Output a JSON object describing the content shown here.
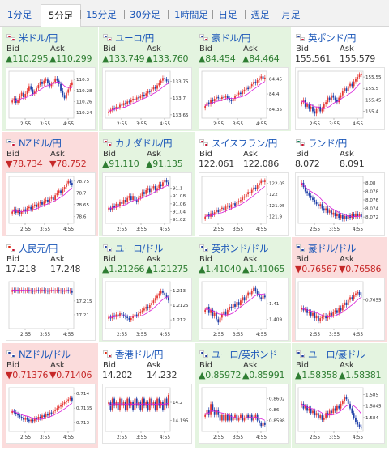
{
  "timeframes": {
    "active": "5分足",
    "items": [
      "1分足",
      "5分足",
      "15分足",
      "30分足",
      "1時間足",
      "日足",
      "週足",
      "月足"
    ]
  },
  "labels": {
    "bid": "Bid",
    "ask": "Ask"
  },
  "colors": {
    "up": "#2e7d32",
    "down": "#c62828",
    "up_bg": "#e4f4e0",
    "down_bg": "#fbdcdc",
    "link": "#1a56b8",
    "candle_up": "#e53935",
    "candle_down": "#1e3fa8",
    "ma": "#d81bd8"
  },
  "time_labels": [
    "2:55",
    "3:55",
    "4:55"
  ],
  "cells": [
    {
      "pair": "米ドル/円",
      "flag_a": "#c8102e",
      "flag_b": "#c8102e",
      "trend": "up",
      "bid": "110.295",
      "ask": "110.299",
      "chart_data": {
        "type": "candlestick",
        "y_ticks": [
          "110.3",
          "110.28",
          "110.26",
          "110.24"
        ],
        "ylim": [
          110.23,
          110.315
        ],
        "x_ticks": [
          "2:55",
          "3:55",
          "4:55"
        ],
        "closes": [
          110.262,
          110.266,
          110.258,
          110.262,
          110.27,
          110.276,
          110.268,
          110.274,
          110.28,
          110.288,
          110.282,
          110.274,
          110.278,
          110.284,
          110.29,
          110.296,
          110.292,
          110.298,
          110.3,
          110.294,
          110.288,
          110.292,
          110.296,
          110.302,
          110.298,
          110.292,
          110.28,
          110.272,
          110.266,
          110.276,
          110.282,
          110.29,
          110.295
        ]
      }
    },
    {
      "pair": "ユーロ/円",
      "flag_a": "#1f3f9f",
      "flag_b": "#c8102e",
      "trend": "up",
      "bid": "133.749",
      "ask": "133.760",
      "chart_data": {
        "type": "candlestick",
        "y_ticks": [
          "133.75",
          "133.7",
          "133.65"
        ],
        "ylim": [
          133.64,
          133.78
        ],
        "x_ticks": [
          "2:55",
          "3:55",
          "4:55"
        ],
        "closes": [
          133.66,
          133.665,
          133.67,
          133.668,
          133.674,
          133.672,
          133.68,
          133.678,
          133.685,
          133.682,
          133.69,
          133.688,
          133.694,
          133.698,
          133.696,
          133.702,
          133.7,
          133.705,
          133.71,
          133.708,
          133.714,
          133.72,
          133.718,
          133.726,
          133.732,
          133.728,
          133.738,
          133.746,
          133.752,
          133.76,
          133.756,
          133.75,
          133.749
        ]
      }
    },
    {
      "pair": "豪ドル/円",
      "flag_a": "#1f3f9f",
      "flag_b": "#c8102e",
      "trend": "up",
      "bid": "84.454",
      "ask": "84.464",
      "chart_data": {
        "type": "candlestick",
        "y_ticks": [
          "84.45",
          "84.4",
          "84.35"
        ],
        "ylim": [
          84.32,
          84.475
        ],
        "x_ticks": [
          "2:55",
          "3:55",
          "4:55"
        ],
        "closes": [
          84.36,
          84.372,
          84.366,
          84.38,
          84.376,
          84.384,
          84.39,
          84.386,
          84.384,
          84.39,
          84.388,
          84.392,
          84.386,
          84.38,
          84.376,
          84.384,
          84.392,
          84.398,
          84.404,
          84.4,
          84.408,
          84.414,
          84.42,
          84.416,
          84.426,
          84.432,
          84.44,
          84.436,
          84.446,
          84.452,
          84.458,
          84.45,
          84.454
        ]
      }
    },
    {
      "pair": "英ポンド/円",
      "flag_a": "#1f3f9f",
      "flag_b": "#c8102e",
      "trend": "flat",
      "bid": "155.561",
      "ask": "155.579",
      "chart_data": {
        "type": "candlestick",
        "y_ticks": [
          "155.55",
          "155.5",
          "155.45",
          "155.4"
        ],
        "ylim": [
          155.37,
          155.575
        ],
        "x_ticks": [
          "2:55",
          "3:55",
          "4:55"
        ],
        "closes": [
          155.44,
          155.45,
          155.42,
          155.43,
          155.41,
          155.42,
          155.4,
          155.39,
          155.41,
          155.42,
          155.4,
          155.41,
          155.43,
          155.44,
          155.46,
          155.45,
          155.47,
          155.46,
          155.45,
          155.44,
          155.46,
          155.47,
          155.49,
          155.5,
          155.49,
          155.51,
          155.52,
          155.51,
          155.53,
          155.54,
          155.55,
          155.56,
          155.561
        ]
      }
    },
    {
      "pair": "NZドル/円",
      "flag_a": "#1f3f9f",
      "flag_b": "#c8102e",
      "trend": "down",
      "bid": "78.734",
      "ask": "78.752",
      "chart_data": {
        "type": "candlestick",
        "y_ticks": [
          "78.75",
          "78.7",
          "78.65",
          "78.6"
        ],
        "ylim": [
          78.57,
          78.77
        ],
        "x_ticks": [
          "2:55",
          "3:55",
          "4:55"
        ],
        "closes": [
          78.62,
          78.63,
          78.615,
          78.625,
          78.61,
          78.62,
          78.63,
          78.62,
          78.635,
          78.64,
          78.63,
          78.645,
          78.65,
          78.64,
          78.655,
          78.66,
          78.65,
          78.665,
          78.67,
          78.66,
          78.675,
          78.68,
          78.67,
          78.69,
          78.7,
          78.71,
          78.7,
          78.715,
          78.725,
          78.74,
          78.75,
          78.742,
          78.734
        ]
      }
    },
    {
      "pair": "カナダドル/円",
      "flag_a": "#c8102e",
      "flag_b": "#c8102e",
      "trend": "up",
      "bid": "91.110",
      "ask": "91.135",
      "chart_data": {
        "type": "candlestick",
        "y_ticks": [
          "91.1",
          "91.08",
          "91.06",
          "91.04",
          "91.02"
        ],
        "ylim": [
          91.01,
          91.13
        ],
        "x_ticks": [
          "2:55",
          "3:55",
          "4:55"
        ],
        "closes": [
          91.05,
          91.045,
          91.055,
          91.05,
          91.06,
          91.055,
          91.065,
          91.06,
          91.07,
          91.065,
          91.075,
          91.08,
          91.07,
          91.08,
          91.07,
          91.065,
          91.075,
          91.08,
          91.09,
          91.085,
          91.095,
          91.1,
          91.09,
          91.1,
          91.105,
          91.095,
          91.1,
          91.11,
          91.105,
          91.115,
          91.12,
          91.115,
          91.11
        ]
      }
    },
    {
      "pair": "スイスフラン/円",
      "flag_a": "#c8102e",
      "flag_b": "#c8102e",
      "trend": "flat",
      "bid": "122.061",
      "ask": "122.086",
      "chart_data": {
        "type": "candlestick",
        "y_ticks": [
          "122.05",
          "122",
          "121.95",
          "121.9"
        ],
        "ylim": [
          121.87,
          122.08
        ],
        "x_ticks": [
          "2:55",
          "3:55",
          "4:55"
        ],
        "closes": [
          121.9,
          121.91,
          121.9,
          121.915,
          121.91,
          121.92,
          121.93,
          121.92,
          121.935,
          121.94,
          121.93,
          121.945,
          121.95,
          121.94,
          121.955,
          121.96,
          121.95,
          121.965,
          121.97,
          121.975,
          121.985,
          121.99,
          122.0,
          122.01,
          122.005,
          122.02,
          122.03,
          122.025,
          122.04,
          122.05,
          122.06,
          122.055,
          122.061
        ]
      }
    },
    {
      "pair": "ランド/円",
      "flag_a": "#007a4d",
      "flag_b": "#c8102e",
      "trend": "flat",
      "bid": "8.072",
      "ask": "8.091",
      "chart_data": {
        "type": "candlestick",
        "y_ticks": [
          "8.08",
          "8.078",
          "8.076",
          "8.074",
          "8.072"
        ],
        "ylim": [
          8.0705,
          8.0815
        ],
        "x_ticks": [
          "2:55",
          "3:55",
          "4:55"
        ],
        "closes": [
          8.08,
          8.079,
          8.078,
          8.0775,
          8.077,
          8.0765,
          8.076,
          8.0755,
          8.075,
          8.0745,
          8.075,
          8.074,
          8.0735,
          8.074,
          8.073,
          8.0735,
          8.0725,
          8.073,
          8.0722,
          8.0728,
          8.0718,
          8.0724,
          8.0715,
          8.0722,
          8.0716,
          8.0724,
          8.0718,
          8.0726,
          8.072,
          8.0728,
          8.0722,
          8.0726,
          8.072
        ]
      }
    },
    {
      "pair": "人民元/円",
      "flag_a": "#de2910",
      "flag_b": "#c8102e",
      "trend": "flat",
      "bid": "17.218",
      "ask": "17.248",
      "chart_data": {
        "type": "candlestick",
        "y_ticks": [
          "17.215",
          "17.21"
        ],
        "ylim": [
          17.205,
          17.222
        ],
        "x_ticks": [
          "2:55",
          "3:55",
          "4:55"
        ],
        "closes": [
          17.219,
          17.2188,
          17.219,
          17.2186,
          17.2188,
          17.219,
          17.2186,
          17.2188,
          17.219,
          17.2186,
          17.2188,
          17.2184,
          17.2188,
          17.219,
          17.2186,
          17.2188,
          17.219,
          17.2186,
          17.2188,
          17.2184,
          17.2188,
          17.219,
          17.2186,
          17.2188,
          17.219,
          17.2186,
          17.2188,
          17.2184,
          17.2188,
          17.219,
          17.2186,
          17.2188,
          17.218
        ]
      }
    },
    {
      "pair": "ユーロ/ドル",
      "flag_a": "#1f3f9f",
      "flag_b": "#1f3f9f",
      "trend": "up",
      "bid": "1.21266",
      "ask": "1.21275",
      "chart_data": {
        "type": "candlestick",
        "y_ticks": [
          "1.213",
          "1.2125",
          "1.212"
        ],
        "ylim": [
          1.2117,
          1.2133
        ],
        "x_ticks": [
          "2:55",
          "3:55",
          "4:55"
        ],
        "closes": [
          1.2121,
          1.21205,
          1.21215,
          1.2121,
          1.21218,
          1.21214,
          1.21222,
          1.21218,
          1.21214,
          1.2121,
          1.21206,
          1.212,
          1.21206,
          1.21212,
          1.21218,
          1.21214,
          1.21222,
          1.21228,
          1.21232,
          1.21238,
          1.21244,
          1.2124,
          1.2125,
          1.21258,
          1.21266,
          1.21274,
          1.21282,
          1.2129,
          1.21298,
          1.21292,
          1.21284,
          1.21276,
          1.21266
        ]
      }
    },
    {
      "pair": "英ポンド/ドル",
      "flag_a": "#1f3f9f",
      "flag_b": "#1f3f9f",
      "trend": "up",
      "bid": "1.41040",
      "ask": "1.41065",
      "chart_data": {
        "type": "candlestick",
        "y_ticks": [
          "1.41",
          "1.409"
        ],
        "ylim": [
          1.4084,
          1.4114
        ],
        "x_ticks": [
          "2:55",
          "3:55",
          "4:55"
        ],
        "closes": [
          1.4096,
          1.4098,
          1.4094,
          1.4096,
          1.4092,
          1.4094,
          1.409,
          1.4088,
          1.4091,
          1.4093,
          1.4095,
          1.4093,
          1.4096,
          1.4098,
          1.4097,
          1.41,
          1.4098,
          1.4101,
          1.4099,
          1.4102,
          1.4104,
          1.4102,
          1.4105,
          1.4107,
          1.4106,
          1.4108,
          1.411,
          1.4108,
          1.4106,
          1.4104,
          1.4103,
          1.4105,
          1.4104
        ]
      }
    },
    {
      "pair": "豪ドル/ドル",
      "flag_a": "#1f3f9f",
      "flag_b": "#1f3f9f",
      "trend": "down",
      "bid": "0.76567",
      "ask": "0.76586",
      "chart_data": {
        "type": "candlestick",
        "y_ticks": [
          "0.7655"
        ],
        "ylim": [
          0.7644,
          0.7662
        ],
        "x_ticks": [
          "2:55",
          "3:55",
          "4:55"
        ],
        "closes": [
          0.7652,
          0.7651,
          0.76515,
          0.765,
          0.76505,
          0.7649,
          0.765,
          0.7648,
          0.7649,
          0.7647,
          0.7648,
          0.76485,
          0.7649,
          0.7648,
          0.76485,
          0.765,
          0.7649,
          0.76505,
          0.7651,
          0.765,
          0.7652,
          0.7651,
          0.7653,
          0.7654,
          0.7653,
          0.7655,
          0.7656,
          0.76555,
          0.7657,
          0.76575,
          0.7658,
          0.7657,
          0.76567
        ]
      }
    },
    {
      "pair": "NZドル/ドル",
      "flag_a": "#1f3f9f",
      "flag_b": "#1f3f9f",
      "trend": "down",
      "bid": "0.71376",
      "ask": "0.71406",
      "chart_data": {
        "type": "candlestick",
        "y_ticks": [
          "0.714",
          "0.7135",
          "0.713"
        ],
        "ylim": [
          0.7127,
          0.7142
        ],
        "x_ticks": [
          "2:55",
          "3:55",
          "4:55"
        ],
        "closes": [
          0.7134,
          0.71335,
          0.7133,
          0.71325,
          0.7132,
          0.71315,
          0.7131,
          0.71315,
          0.7131,
          0.71305,
          0.7131,
          0.71305,
          0.71315,
          0.7131,
          0.7132,
          0.71315,
          0.71325,
          0.7132,
          0.7133,
          0.71325,
          0.71335,
          0.7133,
          0.7134,
          0.71345,
          0.7135,
          0.71355,
          0.7136,
          0.71365,
          0.7137,
          0.71375,
          0.7138,
          0.71385,
          0.71376
        ]
      }
    },
    {
      "pair": "香港ドル/円",
      "flag_a": "#de2910",
      "flag_b": "#c8102e",
      "trend": "flat",
      "bid": "14.202",
      "ask": "14.232",
      "chart_data": {
        "type": "candlestick",
        "y_ticks": [
          "14.2",
          "14.195"
        ],
        "ylim": [
          14.192,
          14.204
        ],
        "x_ticks": [
          "2:55",
          "3:55",
          "4:55"
        ],
        "closes": [
          14.2,
          14.198,
          14.201,
          14.199,
          14.2,
          14.198,
          14.201,
          14.199,
          14.2,
          14.198,
          14.201,
          14.199,
          14.2,
          14.198,
          14.201,
          14.199,
          14.2,
          14.198,
          14.201,
          14.199,
          14.2,
          14.198,
          14.201,
          14.199,
          14.2,
          14.198,
          14.201,
          14.199,
          14.2,
          14.198,
          14.201,
          14.199,
          14.202
        ]
      }
    },
    {
      "pair": "ユーロ/英ポンド",
      "flag_a": "#1f3f9f",
      "flag_b": "#1f3f9f",
      "trend": "up",
      "bid": "0.85972",
      "ask": "0.85991",
      "chart_data": {
        "type": "candlestick",
        "y_ticks": [
          "0.8602",
          "0.86",
          "0.8598"
        ],
        "ylim": [
          0.8596,
          0.8604
        ],
        "x_ticks": [
          "2:55",
          "3:55",
          "4:55"
        ],
        "closes": [
          0.8599,
          0.86,
          0.8599,
          0.8601,
          0.86,
          0.8599,
          0.86,
          0.8599,
          0.8598,
          0.8599,
          0.8598,
          0.8599,
          0.8598,
          0.8599,
          0.8598,
          0.85985,
          0.8599,
          0.8598,
          0.85985,
          0.8599,
          0.8598,
          0.85985,
          0.8599,
          0.85985,
          0.8599,
          0.8598,
          0.85985,
          0.8599,
          0.8598,
          0.85975,
          0.8597,
          0.85975,
          0.85972
        ]
      }
    },
    {
      "pair": "ユーロ/豪ドル",
      "flag_a": "#1f3f9f",
      "flag_b": "#1f3f9f",
      "trend": "up",
      "bid": "1.58358",
      "ask": "1.58381",
      "chart_data": {
        "type": "candlestick",
        "y_ticks": [
          "1.585",
          "1.5845",
          "1.584"
        ],
        "ylim": [
          1.5834,
          1.5853
        ],
        "x_ticks": [
          "2:55",
          "3:55",
          "4:55"
        ],
        "closes": [
          1.5846,
          1.5844,
          1.5845,
          1.5843,
          1.5844,
          1.5842,
          1.5843,
          1.5841,
          1.5842,
          1.584,
          1.5841,
          1.5839,
          1.584,
          1.5842,
          1.5841,
          1.5843,
          1.5842,
          1.5844,
          1.5843,
          1.5845,
          1.5844,
          1.5846,
          1.5847,
          1.5849,
          1.5848,
          1.5846,
          1.5844,
          1.5842,
          1.584,
          1.5838,
          1.5837,
          1.5836,
          1.58358
        ]
      }
    }
  ]
}
